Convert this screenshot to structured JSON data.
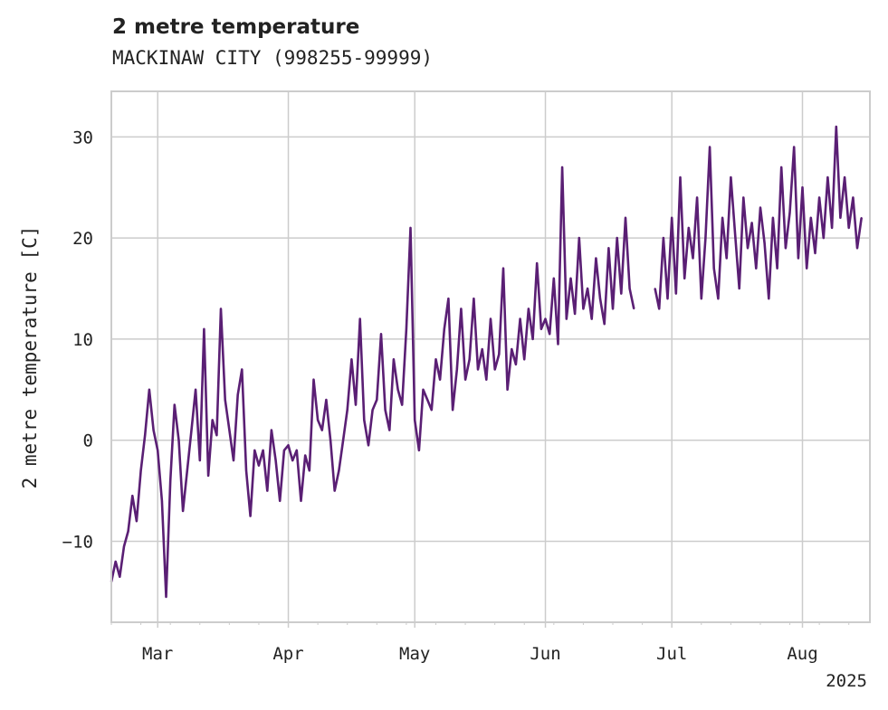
{
  "chart_data": {
    "type": "line",
    "title": "2 metre temperature",
    "subtitle": "MACKINAW CITY (998255-99999)",
    "ylabel": "2 metre temperature [C]",
    "xlabel": "",
    "x_start": "2025-02-18",
    "x_end": "2025-08-17",
    "ylim": [
      -18,
      34.5
    ],
    "yticks": [
      -10,
      0,
      10,
      20,
      30
    ],
    "xticks": [
      {
        "date": "2025-03-01",
        "label": "Mar"
      },
      {
        "date": "2025-04-01",
        "label": "Apr"
      },
      {
        "date": "2025-05-01",
        "label": "May"
      },
      {
        "date": "2025-06-01",
        "label": "Jun"
      },
      {
        "date": "2025-07-01",
        "label": "Jul"
      },
      {
        "date": "2025-08-01",
        "label": "Aug"
      }
    ],
    "year_label": "2025",
    "grid": true,
    "line_color": "#5a1f74",
    "series": [
      {
        "values": [
          [
            "2025-02-18",
            -14.0
          ],
          [
            "2025-02-19",
            -12.0
          ],
          [
            "2025-02-20",
            -13.5
          ],
          [
            "2025-02-21",
            -10.5
          ],
          [
            "2025-02-22",
            -9.0
          ],
          [
            "2025-02-23",
            -5.5
          ],
          [
            "2025-02-24",
            -8.0
          ],
          [
            "2025-02-25",
            -3.0
          ],
          [
            "2025-02-26",
            0.5
          ],
          [
            "2025-02-27",
            5.0
          ],
          [
            "2025-02-28",
            1.0
          ],
          [
            "2025-03-01",
            -1.0
          ],
          [
            "2025-03-02",
            -6.0
          ],
          [
            "2025-03-03",
            -15.5
          ],
          [
            "2025-03-04",
            -4.0
          ],
          [
            "2025-03-05",
            3.5
          ],
          [
            "2025-03-06",
            0.0
          ],
          [
            "2025-03-07",
            -7.0
          ],
          [
            "2025-03-08",
            -3.0
          ],
          [
            "2025-03-09",
            1.0
          ],
          [
            "2025-03-10",
            5.0
          ],
          [
            "2025-03-11",
            -2.0
          ],
          [
            "2025-03-12",
            11.0
          ],
          [
            "2025-03-13",
            -3.5
          ],
          [
            "2025-03-14",
            2.0
          ],
          [
            "2025-03-15",
            0.5
          ],
          [
            "2025-03-16",
            13.0
          ],
          [
            "2025-03-17",
            4.0
          ],
          [
            "2025-03-18",
            1.0
          ],
          [
            "2025-03-19",
            -2.0
          ],
          [
            "2025-03-20",
            4.5
          ],
          [
            "2025-03-21",
            7.0
          ],
          [
            "2025-03-22",
            -3.0
          ],
          [
            "2025-03-23",
            -7.5
          ],
          [
            "2025-03-24",
            -1.0
          ],
          [
            "2025-03-25",
            -2.5
          ],
          [
            "2025-03-26",
            -1.0
          ],
          [
            "2025-03-27",
            -5.0
          ],
          [
            "2025-03-28",
            1.0
          ],
          [
            "2025-03-29",
            -2.0
          ],
          [
            "2025-03-30",
            -6.0
          ],
          [
            "2025-03-31",
            -1.0
          ],
          [
            "2025-04-01",
            -0.5
          ],
          [
            "2025-04-02",
            -2.0
          ],
          [
            "2025-04-03",
            -1.0
          ],
          [
            "2025-04-04",
            -6.0
          ],
          [
            "2025-04-05",
            -1.5
          ],
          [
            "2025-04-06",
            -3.0
          ],
          [
            "2025-04-07",
            6.0
          ],
          [
            "2025-04-08",
            2.0
          ],
          [
            "2025-04-09",
            1.0
          ],
          [
            "2025-04-10",
            4.0
          ],
          [
            "2025-04-11",
            0.0
          ],
          [
            "2025-04-12",
            -5.0
          ],
          [
            "2025-04-13",
            -3.0
          ],
          [
            "2025-04-14",
            0.0
          ],
          [
            "2025-04-15",
            3.0
          ],
          [
            "2025-04-16",
            8.0
          ],
          [
            "2025-04-17",
            3.5
          ],
          [
            "2025-04-18",
            12.0
          ],
          [
            "2025-04-19",
            2.0
          ],
          [
            "2025-04-20",
            -0.5
          ],
          [
            "2025-04-21",
            3.0
          ],
          [
            "2025-04-22",
            4.0
          ],
          [
            "2025-04-23",
            10.5
          ],
          [
            "2025-04-24",
            3.0
          ],
          [
            "2025-04-25",
            1.0
          ],
          [
            "2025-04-26",
            8.0
          ],
          [
            "2025-04-27",
            5.0
          ],
          [
            "2025-04-28",
            3.5
          ],
          [
            "2025-04-29",
            11.0
          ],
          [
            "2025-04-30",
            21.0
          ],
          [
            "2025-05-01",
            2.0
          ],
          [
            "2025-05-02",
            -1.0
          ],
          [
            "2025-05-03",
            5.0
          ],
          [
            "2025-05-04",
            4.0
          ],
          [
            "2025-05-05",
            3.0
          ],
          [
            "2025-05-06",
            8.0
          ],
          [
            "2025-05-07",
            6.0
          ],
          [
            "2025-05-08",
            11.0
          ],
          [
            "2025-05-09",
            14.0
          ],
          [
            "2025-05-10",
            3.0
          ],
          [
            "2025-05-11",
            7.0
          ],
          [
            "2025-05-12",
            13.0
          ],
          [
            "2025-05-13",
            6.0
          ],
          [
            "2025-05-14",
            8.0
          ],
          [
            "2025-05-15",
            14.0
          ],
          [
            "2025-05-16",
            7.0
          ],
          [
            "2025-05-17",
            9.0
          ],
          [
            "2025-05-18",
            6.0
          ],
          [
            "2025-05-19",
            12.0
          ],
          [
            "2025-05-20",
            7.0
          ],
          [
            "2025-05-21",
            8.5
          ],
          [
            "2025-05-22",
            17.0
          ],
          [
            "2025-05-23",
            5.0
          ],
          [
            "2025-05-24",
            9.0
          ],
          [
            "2025-05-25",
            7.5
          ],
          [
            "2025-05-26",
            12.0
          ],
          [
            "2025-05-27",
            8.0
          ],
          [
            "2025-05-28",
            13.0
          ],
          [
            "2025-05-29",
            10.0
          ],
          [
            "2025-05-30",
            17.5
          ],
          [
            "2025-05-31",
            11.0
          ],
          [
            "2025-06-01",
            12.0
          ],
          [
            "2025-06-02",
            10.5
          ],
          [
            "2025-06-03",
            16.0
          ],
          [
            "2025-06-04",
            9.5
          ],
          [
            "2025-06-05",
            27.0
          ],
          [
            "2025-06-06",
            12.0
          ],
          [
            "2025-06-07",
            16.0
          ],
          [
            "2025-06-08",
            12.5
          ],
          [
            "2025-06-09",
            20.0
          ],
          [
            "2025-06-10",
            13.0
          ],
          [
            "2025-06-11",
            15.0
          ],
          [
            "2025-06-12",
            12.0
          ],
          [
            "2025-06-13",
            18.0
          ],
          [
            "2025-06-14",
            14.0
          ],
          [
            "2025-06-15",
            11.5
          ],
          [
            "2025-06-16",
            19.0
          ],
          [
            "2025-06-17",
            13.0
          ],
          [
            "2025-06-18",
            20.0
          ],
          [
            "2025-06-19",
            14.5
          ],
          [
            "2025-06-20",
            22.0
          ],
          [
            "2025-06-21",
            15.0
          ],
          [
            "2025-06-22",
            13.0
          ],
          [
            "2025-06-23",
            null
          ],
          [
            "2025-06-26",
            null
          ],
          [
            "2025-06-27",
            15.0
          ],
          [
            "2025-06-28",
            13.0
          ],
          [
            "2025-06-29",
            20.0
          ],
          [
            "2025-06-30",
            14.0
          ],
          [
            "2025-07-01",
            22.0
          ],
          [
            "2025-07-02",
            14.5
          ],
          [
            "2025-07-03",
            26.0
          ],
          [
            "2025-07-04",
            16.0
          ],
          [
            "2025-07-05",
            21.0
          ],
          [
            "2025-07-06",
            18.0
          ],
          [
            "2025-07-07",
            24.0
          ],
          [
            "2025-07-08",
            14.0
          ],
          [
            "2025-07-09",
            20.0
          ],
          [
            "2025-07-10",
            29.0
          ],
          [
            "2025-07-11",
            17.0
          ],
          [
            "2025-07-12",
            14.0
          ],
          [
            "2025-07-13",
            22.0
          ],
          [
            "2025-07-14",
            18.0
          ],
          [
            "2025-07-15",
            26.0
          ],
          [
            "2025-07-16",
            20.5
          ],
          [
            "2025-07-17",
            15.0
          ],
          [
            "2025-07-18",
            24.0
          ],
          [
            "2025-07-19",
            19.0
          ],
          [
            "2025-07-20",
            21.5
          ],
          [
            "2025-07-21",
            17.0
          ],
          [
            "2025-07-22",
            23.0
          ],
          [
            "2025-07-23",
            19.5
          ],
          [
            "2025-07-24",
            14.0
          ],
          [
            "2025-07-25",
            22.0
          ],
          [
            "2025-07-26",
            17.0
          ],
          [
            "2025-07-27",
            27.0
          ],
          [
            "2025-07-28",
            19.0
          ],
          [
            "2025-07-29",
            22.5
          ],
          [
            "2025-07-30",
            29.0
          ],
          [
            "2025-07-31",
            18.0
          ],
          [
            "2025-08-01",
            25.0
          ],
          [
            "2025-08-02",
            17.0
          ],
          [
            "2025-08-03",
            22.0
          ],
          [
            "2025-08-04",
            18.5
          ],
          [
            "2025-08-05",
            24.0
          ],
          [
            "2025-08-06",
            20.0
          ],
          [
            "2025-08-07",
            26.0
          ],
          [
            "2025-08-08",
            21.0
          ],
          [
            "2025-08-09",
            31.0
          ],
          [
            "2025-08-10",
            22.0
          ],
          [
            "2025-08-11",
            26.0
          ],
          [
            "2025-08-12",
            21.0
          ],
          [
            "2025-08-13",
            24.0
          ],
          [
            "2025-08-14",
            19.0
          ],
          [
            "2025-08-15",
            22.0
          ]
        ]
      }
    ]
  }
}
